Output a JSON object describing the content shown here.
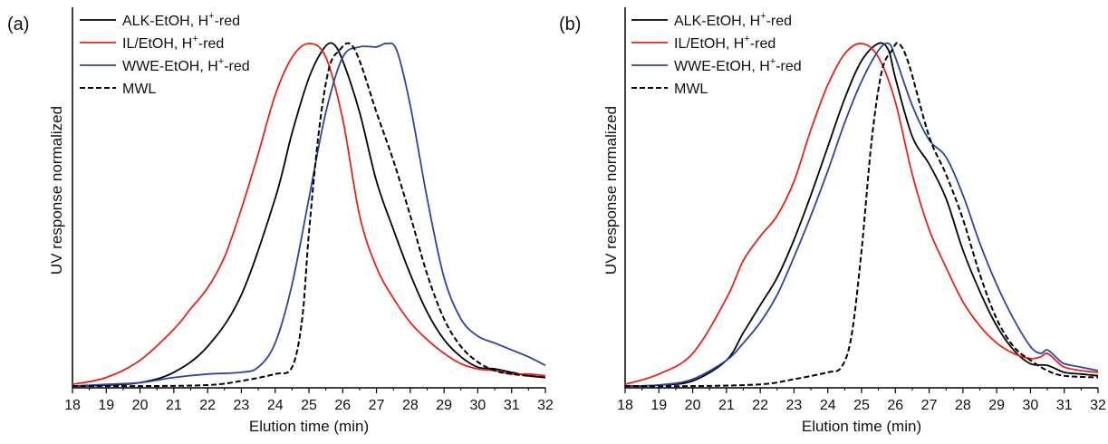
{
  "figure": {
    "panels": [
      {
        "label": "(a)",
        "xlabel": "Elution time (min)",
        "ylabel": "UV response normalized"
      },
      {
        "label": "(b)",
        "xlabel": "Elution time (min)",
        "ylabel": "UV response normalized"
      }
    ]
  },
  "chart_data": [
    {
      "type": "line",
      "panel_label": "(a)",
      "xlabel": "Elution time (min)",
      "ylabel": "UV response normalized",
      "xlim": [
        18,
        32
      ],
      "ylim": [
        0,
        1.0
      ],
      "x_ticks": [
        "18",
        "19",
        "20",
        "21",
        "22",
        "23",
        "24",
        "25",
        "26",
        "27",
        "28",
        "29",
        "30",
        "31",
        "32"
      ],
      "y_ticks": [],
      "grid": false,
      "legend_position": "top-left",
      "series": [
        {
          "name_main": "ALK-EtOH, H",
          "name_sup": "+",
          "name_end": "-red",
          "color": "#000000",
          "dash": "solid",
          "points": [
            [
              18,
              0.005
            ],
            [
              19,
              0.008
            ],
            [
              20,
              0.015
            ],
            [
              21,
              0.045
            ],
            [
              22,
              0.12
            ],
            [
              23,
              0.27
            ],
            [
              24,
              0.55
            ],
            [
              24.5,
              0.74
            ],
            [
              25,
              0.9
            ],
            [
              25.4,
              0.98
            ],
            [
              25.7,
              1.0
            ],
            [
              26,
              0.95
            ],
            [
              26.5,
              0.8
            ],
            [
              27,
              0.6
            ],
            [
              27.5,
              0.46
            ],
            [
              28,
              0.33
            ],
            [
              28.5,
              0.22
            ],
            [
              29,
              0.14
            ],
            [
              29.5,
              0.09
            ],
            [
              30,
              0.06
            ],
            [
              30.5,
              0.055
            ],
            [
              31,
              0.045
            ],
            [
              31.5,
              0.035
            ],
            [
              32,
              0.03
            ]
          ]
        },
        {
          "name_main": "IL/EtOH, H",
          "name_sup": "+",
          "name_end": "-red",
          "color": "#e8231a",
          "dash": "solid",
          "points": [
            [
              18,
              0.01
            ],
            [
              19,
              0.03
            ],
            [
              20,
              0.08
            ],
            [
              21,
              0.17
            ],
            [
              21.5,
              0.23
            ],
            [
              22,
              0.29
            ],
            [
              22.5,
              0.38
            ],
            [
              23,
              0.52
            ],
            [
              23.5,
              0.68
            ],
            [
              24,
              0.85
            ],
            [
              24.5,
              0.96
            ],
            [
              25,
              1.0
            ],
            [
              25.5,
              0.96
            ],
            [
              26,
              0.78
            ],
            [
              26.5,
              0.5
            ],
            [
              27,
              0.35
            ],
            [
              27.5,
              0.26
            ],
            [
              28,
              0.19
            ],
            [
              28.5,
              0.14
            ],
            [
              29,
              0.1
            ],
            [
              29.5,
              0.07
            ],
            [
              30,
              0.055
            ],
            [
              30.5,
              0.05
            ],
            [
              31,
              0.04
            ],
            [
              31.5,
              0.04
            ],
            [
              32,
              0.035
            ]
          ]
        },
        {
          "name_main": "WWE-EtOH, H",
          "name_sup": "+",
          "name_end": "-red",
          "color": "#2b45a0",
          "dash": "solid",
          "points": [
            [
              18,
              0.005
            ],
            [
              19,
              0.01
            ],
            [
              20,
              0.015
            ],
            [
              21,
              0.03
            ],
            [
              22,
              0.04
            ],
            [
              23,
              0.045
            ],
            [
              23.5,
              0.06
            ],
            [
              24,
              0.13
            ],
            [
              24.5,
              0.3
            ],
            [
              25,
              0.55
            ],
            [
              25.5,
              0.8
            ],
            [
              26,
              0.96
            ],
            [
              26.5,
              0.99
            ],
            [
              27,
              0.99
            ],
            [
              27.3,
              1.0
            ],
            [
              27.6,
              0.98
            ],
            [
              28,
              0.82
            ],
            [
              28.5,
              0.55
            ],
            [
              29,
              0.32
            ],
            [
              29.5,
              0.2
            ],
            [
              30,
              0.15
            ],
            [
              30.5,
              0.13
            ],
            [
              31,
              0.11
            ],
            [
              31.5,
              0.09
            ],
            [
              32,
              0.065
            ]
          ]
        },
        {
          "name_main": "MWL",
          "name_sup": "",
          "name_end": "",
          "color": "#000000",
          "dash": "dashed",
          "points": [
            [
              18,
              0.005
            ],
            [
              20,
              0.005
            ],
            [
              22,
              0.008
            ],
            [
              23,
              0.02
            ],
            [
              24,
              0.04
            ],
            [
              24.5,
              0.06
            ],
            [
              24.8,
              0.2
            ],
            [
              25,
              0.45
            ],
            [
              25.3,
              0.75
            ],
            [
              25.6,
              0.93
            ],
            [
              25.9,
              0.98
            ],
            [
              26.2,
              1.0
            ],
            [
              26.5,
              0.95
            ],
            [
              27,
              0.8
            ],
            [
              27.5,
              0.66
            ],
            [
              28,
              0.5
            ],
            [
              28.5,
              0.33
            ],
            [
              29,
              0.2
            ],
            [
              29.5,
              0.12
            ],
            [
              30,
              0.075
            ],
            [
              30.5,
              0.05
            ],
            [
              31,
              0.04
            ],
            [
              32,
              0.03
            ]
          ]
        }
      ]
    },
    {
      "type": "line",
      "panel_label": "(b)",
      "xlabel": "Elution time (min)",
      "ylabel": "UV response normalized",
      "xlim": [
        18,
        32
      ],
      "ylim": [
        0,
        1.0
      ],
      "x_ticks": [
        "18",
        "19",
        "20",
        "21",
        "22",
        "23",
        "24",
        "25",
        "26",
        "27",
        "28",
        "29",
        "30",
        "31",
        "32"
      ],
      "y_ticks": [],
      "grid": false,
      "legend_position": "top-left",
      "series": [
        {
          "name_main": "ALK-EtOH, H",
          "name_sup": "+",
          "name_end": "-red",
          "color": "#000000",
          "dash": "solid",
          "points": [
            [
              18,
              0.005
            ],
            [
              19,
              0.008
            ],
            [
              20,
              0.02
            ],
            [
              21,
              0.08
            ],
            [
              21.5,
              0.16
            ],
            [
              22,
              0.24
            ],
            [
              22.5,
              0.32
            ],
            [
              23,
              0.43
            ],
            [
              23.5,
              0.56
            ],
            [
              24,
              0.7
            ],
            [
              24.5,
              0.84
            ],
            [
              25,
              0.95
            ],
            [
              25.5,
              1.0
            ],
            [
              25.8,
              0.98
            ],
            [
              26,
              0.9
            ],
            [
              26.5,
              0.73
            ],
            [
              27,
              0.65
            ],
            [
              27.5,
              0.55
            ],
            [
              28,
              0.4
            ],
            [
              28.5,
              0.28
            ],
            [
              29,
              0.18
            ],
            [
              29.5,
              0.11
            ],
            [
              30,
              0.07
            ],
            [
              30.5,
              0.065
            ],
            [
              31,
              0.045
            ],
            [
              31.5,
              0.04
            ],
            [
              32,
              0.035
            ]
          ]
        },
        {
          "name_main": "IL/EtOH, H",
          "name_sup": "+",
          "name_end": "-red",
          "color": "#e8231a",
          "dash": "solid",
          "points": [
            [
              18,
              0.01
            ],
            [
              19,
              0.04
            ],
            [
              20,
              0.1
            ],
            [
              21,
              0.26
            ],
            [
              21.5,
              0.37
            ],
            [
              22,
              0.44
            ],
            [
              22.5,
              0.5
            ],
            [
              23,
              0.6
            ],
            [
              23.5,
              0.75
            ],
            [
              24,
              0.88
            ],
            [
              24.5,
              0.97
            ],
            [
              25,
              1.0
            ],
            [
              25.5,
              0.96
            ],
            [
              26,
              0.83
            ],
            [
              26.5,
              0.62
            ],
            [
              27,
              0.46
            ],
            [
              27.5,
              0.35
            ],
            [
              28,
              0.25
            ],
            [
              28.5,
              0.18
            ],
            [
              29,
              0.13
            ],
            [
              29.5,
              0.1
            ],
            [
              30,
              0.085
            ],
            [
              30.3,
              0.09
            ],
            [
              30.5,
              0.1
            ],
            [
              30.8,
              0.075
            ],
            [
              31,
              0.06
            ],
            [
              31.5,
              0.05
            ],
            [
              32,
              0.045
            ]
          ]
        },
        {
          "name_main": "WWE-EtOH, H",
          "name_sup": "+",
          "name_end": "-red",
          "color": "#2b45a0",
          "dash": "solid",
          "points": [
            [
              18,
              0.005
            ],
            [
              19,
              0.008
            ],
            [
              20,
              0.025
            ],
            [
              21,
              0.08
            ],
            [
              21.5,
              0.13
            ],
            [
              22,
              0.19
            ],
            [
              22.5,
              0.27
            ],
            [
              23,
              0.38
            ],
            [
              23.5,
              0.5
            ],
            [
              24,
              0.63
            ],
            [
              24.5,
              0.77
            ],
            [
              25,
              0.89
            ],
            [
              25.5,
              0.98
            ],
            [
              25.8,
              1.0
            ],
            [
              26,
              0.96
            ],
            [
              26.5,
              0.82
            ],
            [
              27,
              0.72
            ],
            [
              27.5,
              0.67
            ],
            [
              28,
              0.56
            ],
            [
              28.5,
              0.42
            ],
            [
              29,
              0.3
            ],
            [
              29.5,
              0.2
            ],
            [
              30,
              0.12
            ],
            [
              30.3,
              0.1
            ],
            [
              30.5,
              0.11
            ],
            [
              30.8,
              0.085
            ],
            [
              31,
              0.07
            ],
            [
              31.5,
              0.06
            ],
            [
              32,
              0.05
            ]
          ]
        },
        {
          "name_main": "MWL",
          "name_sup": "",
          "name_end": "",
          "color": "#000000",
          "dash": "dashed",
          "points": [
            [
              18,
              0.005
            ],
            [
              20,
              0.005
            ],
            [
              22,
              0.01
            ],
            [
              23,
              0.025
            ],
            [
              24,
              0.045
            ],
            [
              24.4,
              0.06
            ],
            [
              24.7,
              0.15
            ],
            [
              25,
              0.4
            ],
            [
              25.3,
              0.72
            ],
            [
              25.6,
              0.92
            ],
            [
              25.9,
              0.98
            ],
            [
              26.1,
              1.0
            ],
            [
              26.4,
              0.94
            ],
            [
              27,
              0.73
            ],
            [
              27.5,
              0.62
            ],
            [
              28,
              0.49
            ],
            [
              28.5,
              0.33
            ],
            [
              29,
              0.2
            ],
            [
              29.5,
              0.12
            ],
            [
              30,
              0.08
            ],
            [
              30.5,
              0.05
            ],
            [
              31,
              0.035
            ],
            [
              32,
              0.03
            ]
          ]
        }
      ]
    }
  ]
}
